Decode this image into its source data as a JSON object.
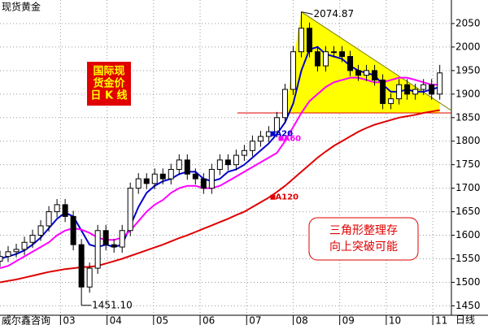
{
  "chart_data": {
    "type": "candlestick",
    "title": "现货黄金",
    "source": "威尔鑫咨询",
    "period": "日线",
    "box_text": [
      "国际现",
      "货金价",
      "日 K 线"
    ],
    "note": [
      "三角形整理存",
      "向上突破可能"
    ],
    "extreme_labels": {
      "high": "2074.87",
      "low": "1451.10"
    },
    "xlim": [
      2001.7,
      2011.4
    ],
    "ylim": [
      1430,
      2100
    ],
    "grid": true,
    "xticks": [
      {
        "value": 2003,
        "label": "03"
      },
      {
        "value": 2004,
        "label": "04"
      },
      {
        "value": 2005,
        "label": "05"
      },
      {
        "value": 2006,
        "label": "06"
      },
      {
        "value": 2007,
        "label": "07"
      },
      {
        "value": 2008,
        "label": "08"
      },
      {
        "value": 2009,
        "label": "09"
      },
      {
        "value": 2010,
        "label": "10"
      },
      {
        "value": 2011,
        "label": "11"
      }
    ],
    "yticks": [
      1450,
      1500,
      1550,
      1600,
      1650,
      1700,
      1750,
      1800,
      1850,
      1900,
      1950,
      2000,
      2050
    ],
    "x": [
      2001.7,
      2001.875,
      2002.05,
      2002.225,
      2002.4,
      2002.575,
      2002.75,
      2002.925,
      2003.1,
      2003.275,
      2003.45,
      2003.625,
      2003.8,
      2003.975,
      2004.15,
      2004.325,
      2004.5,
      2004.675,
      2004.85,
      2005.025,
      2005.2,
      2005.375,
      2005.55,
      2005.725,
      2005.9,
      2006.075,
      2006.25,
      2006.425,
      2006.6,
      2006.775,
      2006.95,
      2007.125,
      2007.3,
      2007.475,
      2007.65,
      2007.825,
      2008.0,
      2008.175,
      2008.35,
      2008.525,
      2008.7,
      2008.875,
      2009.05,
      2009.225,
      2009.4,
      2009.575,
      2009.75,
      2009.925,
      2010.1,
      2010.275,
      2010.45,
      2010.625,
      2010.8,
      2010.975,
      2011.15
    ],
    "candles": {
      "color": "#000000",
      "open": [
        1545,
        1555,
        1565,
        1570,
        1585,
        1600,
        1620,
        1650,
        1665,
        1640,
        1580,
        1490,
        1530,
        1610,
        1580,
        1575,
        1610,
        1700,
        1720,
        1710,
        1730,
        1720,
        1740,
        1760,
        1730,
        1720,
        1700,
        1740,
        1760,
        1750,
        1770,
        1780,
        1800,
        1810,
        1820,
        1850,
        1910,
        1990,
        2040,
        1990,
        1960,
        1990,
        1990,
        1980,
        1950,
        1940,
        1950,
        1930,
        1880,
        1890,
        1920,
        1900,
        1910,
        1920,
        1900
      ],
      "high": [
        1567,
        1577,
        1582,
        1597,
        1612,
        1632,
        1662,
        1677,
        1677,
        1652,
        1592,
        1542,
        1622,
        1622,
        1592,
        1622,
        1712,
        1732,
        1732,
        1742,
        1742,
        1752,
        1772,
        1772,
        1742,
        1732,
        1752,
        1772,
        1772,
        1782,
        1792,
        1812,
        1822,
        1832,
        1862,
        1922,
        2002,
        2074.87,
        2052,
        2002,
        2002,
        2002,
        2002,
        1992,
        1962,
        1962,
        1962,
        1942,
        1902,
        1932,
        1932,
        1922,
        1932,
        1932,
        1962
      ],
      "low": [
        1533,
        1543,
        1553,
        1558,
        1573,
        1588,
        1608,
        1638,
        1628,
        1568,
        1451.1,
        1478,
        1518,
        1568,
        1563,
        1563,
        1598,
        1688,
        1698,
        1698,
        1708,
        1708,
        1728,
        1718,
        1708,
        1688,
        1688,
        1728,
        1738,
        1738,
        1758,
        1768,
        1788,
        1798,
        1808,
        1838,
        1898,
        1978,
        1978,
        1948,
        1948,
        1978,
        1968,
        1938,
        1928,
        1928,
        1918,
        1868,
        1868,
        1878,
        1888,
        1888,
        1898,
        1888,
        1888
      ],
      "close": [
        1555,
        1565,
        1570,
        1585,
        1600,
        1620,
        1650,
        1665,
        1640,
        1580,
        1490,
        1530,
        1610,
        1580,
        1575,
        1610,
        1700,
        1720,
        1710,
        1730,
        1720,
        1740,
        1760,
        1730,
        1720,
        1700,
        1740,
        1760,
        1750,
        1770,
        1780,
        1800,
        1810,
        1820,
        1850,
        1910,
        1990,
        2040,
        1990,
        1960,
        1990,
        1990,
        1980,
        1950,
        1940,
        1950,
        1930,
        1880,
        1890,
        1920,
        1900,
        1910,
        1920,
        1900,
        1945
      ]
    },
    "series": [
      {
        "name": "A20",
        "color": "#0000cc",
        "values": [
          1550,
          1555,
          1560,
          1568,
          1580,
          1595,
          1615,
          1635,
          1648,
          1640,
          1610,
          1580,
          1575,
          1580,
          1575,
          1580,
          1620,
          1660,
          1690,
          1705,
          1715,
          1720,
          1730,
          1735,
          1735,
          1720,
          1715,
          1720,
          1735,
          1740,
          1750,
          1765,
          1780,
          1795,
          1815,
          1840,
          1880,
          1950,
          1995,
          2000,
          1985,
          1980,
          1975,
          1960,
          1950,
          1945,
          1940,
          1920,
          1905,
          1905,
          1910,
          1905,
          1905,
          1910,
          1915
        ]
      },
      {
        "name": "A60",
        "color": "#ff00ff",
        "values": [
          1530,
          1535,
          1545,
          1555,
          1565,
          1575,
          1585,
          1600,
          1610,
          1615,
          1612,
          1605,
          1595,
          1590,
          1590,
          1595,
          1610,
          1630,
          1650,
          1665,
          1675,
          1690,
          1700,
          1705,
          1705,
          1700,
          1700,
          1705,
          1715,
          1725,
          1735,
          1745,
          1755,
          1765,
          1775,
          1800,
          1830,
          1860,
          1885,
          1900,
          1915,
          1925,
          1930,
          1935,
          1935,
          1930,
          1925,
          1925,
          1930,
          1935,
          1935,
          1930,
          1925,
          1920,
          1920
        ]
      },
      {
        "name": "A120",
        "color": "#e00000",
        "values": [
          1500,
          1503,
          1506,
          1510,
          1514,
          1518,
          1522,
          1525,
          1528,
          1530,
          1532,
          1533,
          1535,
          1540,
          1545,
          1550,
          1556,
          1562,
          1568,
          1574,
          1580,
          1587,
          1594,
          1600,
          1607,
          1614,
          1621,
          1628,
          1635,
          1643,
          1650,
          1660,
          1670,
          1680,
          1692,
          1705,
          1720,
          1735,
          1750,
          1765,
          1778,
          1790,
          1800,
          1810,
          1820,
          1828,
          1835,
          1840,
          1845,
          1850,
          1853,
          1856,
          1860,
          1863,
          1866
        ]
      }
    ],
    "support": {
      "level": 1860,
      "x": [
        2006.8,
        2011.4
      ],
      "color": "#e00000"
    },
    "resistance": {
      "x": [
        2008.175,
        2011.4
      ],
      "y": [
        2074.87,
        1865
      ],
      "color": "#808000"
    },
    "triangle_color": "#ffff00"
  }
}
